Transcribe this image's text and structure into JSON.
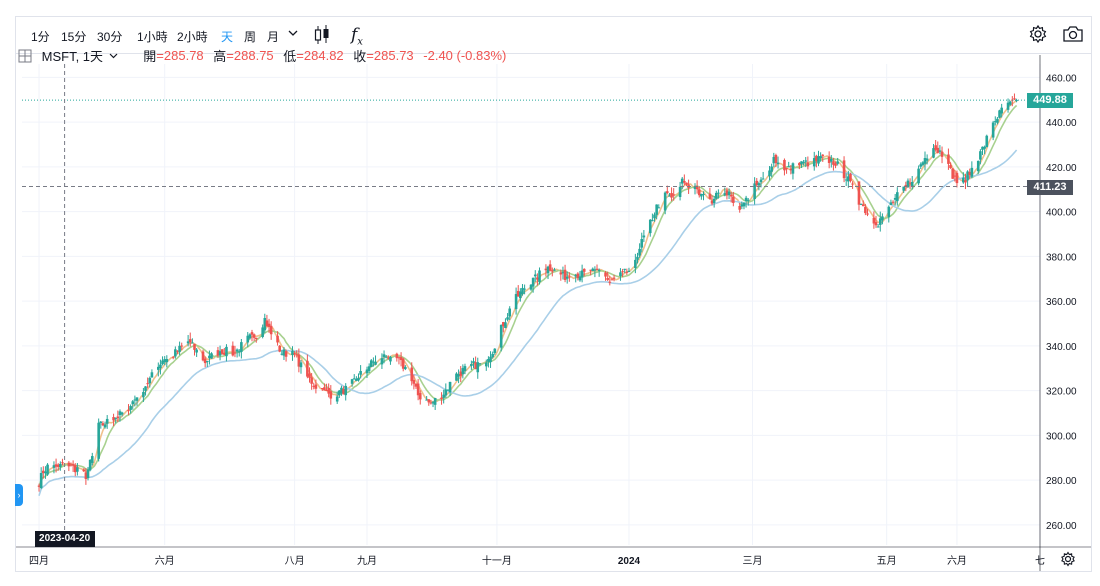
{
  "toolbar": {
    "timeframes": [
      "1分",
      "15分",
      "30分",
      "1小時",
      "2小時",
      "天",
      "周",
      "月"
    ],
    "active_timeframe": "天",
    "dropdown_icon": "chevron-down-icon",
    "candle_icon": "candlestick-icon",
    "fx_icon": "fx-icon",
    "fx_label": "f",
    "fx_sub": "x",
    "settings_icon": "gear-icon",
    "camera_icon": "camera-icon"
  },
  "legend": {
    "icon": "grid-icon",
    "symbol": "MSFT, 1天",
    "open_label": "開",
    "open_value": "=285.78",
    "high_label": "高",
    "high_value": "=288.75",
    "low_label": "低",
    "low_value": "=284.82",
    "close_label": "收",
    "close_value": "=285.73",
    "change": "-2.40 (-0.83%)"
  },
  "price_tags": {
    "last_price": "449.88",
    "last_price_color": "#26a69a",
    "crosshair_price": "411.23",
    "crosshair_color": "#4c525e"
  },
  "crosshair_date": "2023-04-20",
  "colors": {
    "up": "#26a69a",
    "down": "#ef5350",
    "ma_fast": "#f0c08c",
    "ma_mid": "#a8d18f",
    "ma_slow": "#a9cfe8"
  },
  "chart_data": {
    "type": "candlestick",
    "title": "MSFT, 1天",
    "y_ticks": [
      260,
      280,
      300,
      320,
      340,
      360,
      380,
      400,
      420,
      440,
      460
    ],
    "ylim": [
      251,
      466
    ],
    "x_tick_labels": [
      "四月",
      "六月",
      "八月",
      "九月",
      "十一月",
      "2024",
      "三月",
      "五月",
      "六月",
      "七"
    ],
    "x_tick_positions_days": [
      0,
      59,
      120,
      154,
      215,
      277,
      335,
      398,
      431,
      470
    ],
    "x_range_days": [
      -8,
      470
    ],
    "last_price": 449.88,
    "crosshair": {
      "date": "2023-04-20",
      "price": 411.23
    },
    "price_anchors": [
      [
        0,
        279
      ],
      [
        2,
        284
      ],
      [
        5,
        287
      ],
      [
        8,
        285
      ],
      [
        12,
        288
      ],
      [
        15,
        286
      ],
      [
        18,
        285
      ],
      [
        22,
        282
      ],
      [
        25,
        290
      ],
      [
        28,
        304
      ],
      [
        32,
        306
      ],
      [
        38,
        309
      ],
      [
        45,
        316
      ],
      [
        52,
        325
      ],
      [
        58,
        334
      ],
      [
        63,
        336
      ],
      [
        70,
        342
      ],
      [
        78,
        333
      ],
      [
        85,
        338
      ],
      [
        92,
        337
      ],
      [
        98,
        343
      ],
      [
        102,
        345
      ],
      [
        106,
        352
      ],
      [
        110,
        343
      ],
      [
        114,
        337
      ],
      [
        120,
        336
      ],
      [
        126,
        326
      ],
      [
        132,
        320
      ],
      [
        138,
        318
      ],
      [
        145,
        321
      ],
      [
        152,
        329
      ],
      [
        160,
        335
      ],
      [
        166,
        336
      ],
      [
        172,
        330
      ],
      [
        178,
        318
      ],
      [
        184,
        314
      ],
      [
        190,
        319
      ],
      [
        196,
        327
      ],
      [
        202,
        331
      ],
      [
        208,
        332
      ],
      [
        213,
        338
      ],
      [
        218,
        350
      ],
      [
        223,
        360
      ],
      [
        228,
        366
      ],
      [
        233,
        370
      ],
      [
        238,
        375
      ],
      [
        242,
        375
      ],
      [
        246,
        371
      ],
      [
        252,
        372
      ],
      [
        258,
        372
      ],
      [
        264,
        374
      ],
      [
        268,
        368
      ],
      [
        274,
        372
      ],
      [
        278,
        374
      ],
      [
        282,
        384
      ],
      [
        286,
        393
      ],
      [
        290,
        402
      ],
      [
        294,
        408
      ],
      [
        298,
        406
      ],
      [
        302,
        414
      ],
      [
        306,
        411
      ],
      [
        310,
        408
      ],
      [
        315,
        404
      ],
      [
        320,
        412
      ],
      [
        325,
        406
      ],
      [
        330,
        402
      ],
      [
        335,
        410
      ],
      [
        340,
        414
      ],
      [
        345,
        424
      ],
      [
        350,
        418
      ],
      [
        356,
        421
      ],
      [
        362,
        422
      ],
      [
        368,
        424
      ],
      [
        374,
        422
      ],
      [
        380,
        414
      ],
      [
        385,
        405
      ],
      [
        390,
        398
      ],
      [
        394,
        395
      ],
      [
        398,
        401
      ],
      [
        404,
        408
      ],
      [
        410,
        415
      ],
      [
        416,
        424
      ],
      [
        420,
        429
      ],
      [
        424,
        426
      ],
      [
        428,
        418
      ],
      [
        432,
        412
      ],
      [
        436,
        416
      ],
      [
        440,
        422
      ],
      [
        444,
        430
      ],
      [
        448,
        440
      ],
      [
        452,
        445
      ],
      [
        456,
        448
      ],
      [
        459,
        450
      ]
    ]
  }
}
